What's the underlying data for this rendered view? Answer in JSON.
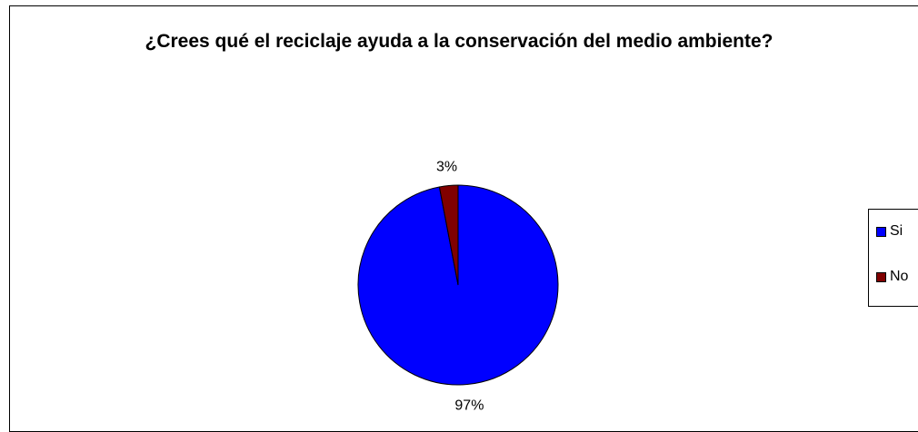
{
  "chart_data": {
    "type": "pie",
    "title": "¿Crees qué el reciclaje ayuda a la conservación del medio ambiente?",
    "categories": [
      "Si",
      "No"
    ],
    "values": [
      97,
      3
    ],
    "data_labels": [
      "97%",
      "3%"
    ],
    "colors": [
      "#0000FF",
      "#800000"
    ],
    "legend": "right"
  }
}
